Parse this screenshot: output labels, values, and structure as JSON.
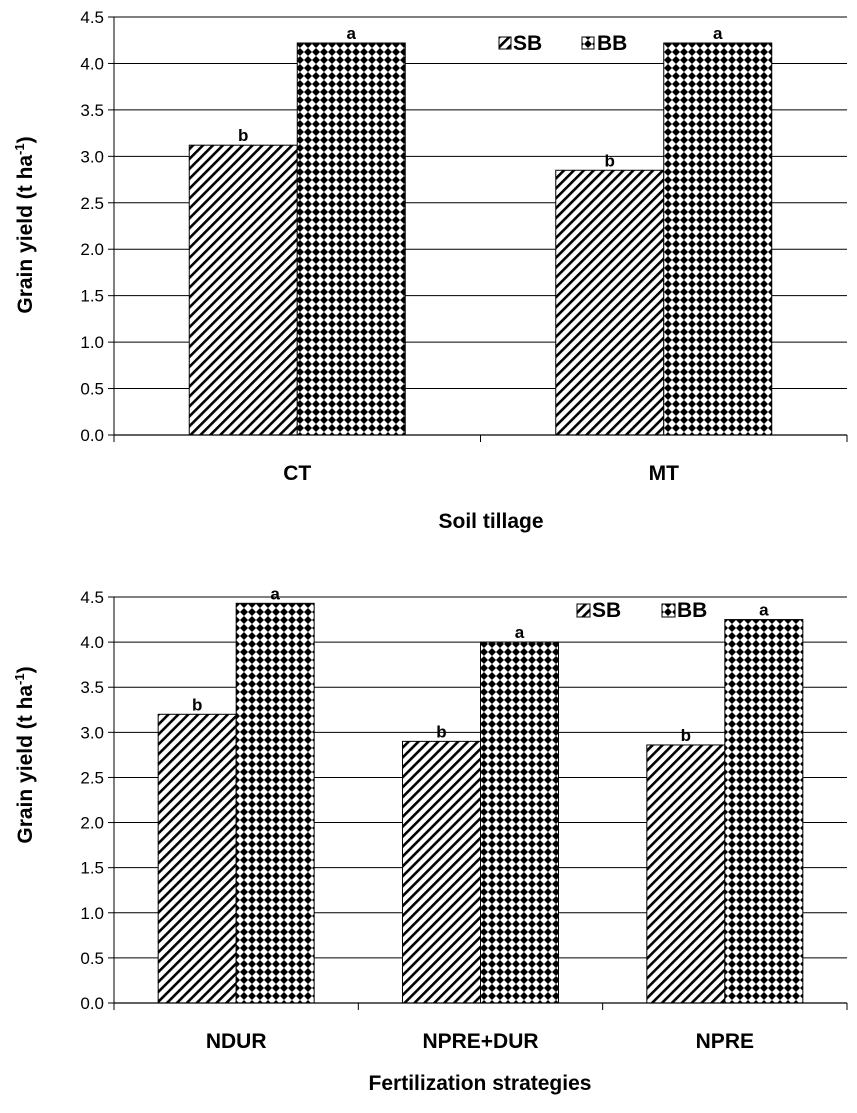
{
  "chart_data": [
    {
      "type": "bar",
      "xlabel": "Soil tillage",
      "ylabel_main": "Grain yield (t ha",
      "ylabel_sup": "-1",
      "ylabel_close": ")",
      "ylim": [
        0,
        4.5
      ],
      "yticks": [
        "0.0",
        "0.5",
        "1.0",
        "1.5",
        "2.0",
        "2.5",
        "3.0",
        "3.5",
        "4.0",
        "4.5"
      ],
      "categories": [
        "CT",
        "MT"
      ],
      "series": [
        {
          "name": "SB",
          "values": [
            3.12,
            2.85
          ],
          "letters": [
            "b",
            "b"
          ]
        },
        {
          "name": "BB",
          "values": [
            4.22,
            4.22
          ],
          "letters": [
            "a",
            "a"
          ]
        }
      ],
      "legend_position": "top-right"
    },
    {
      "type": "bar",
      "xlabel": "Fertilization strategies",
      "ylabel_main": "Grain yield (t ha",
      "ylabel_sup": "-1",
      "ylabel_close": ")",
      "ylim": [
        0,
        4.5
      ],
      "yticks": [
        "0.0",
        "0.5",
        "1.0",
        "1.5",
        "2.0",
        "2.5",
        "3.0",
        "3.5",
        "4.0",
        "4.5"
      ],
      "categories": [
        "NDUR",
        "NPRE+DUR",
        "NPRE"
      ],
      "series": [
        {
          "name": "SB",
          "values": [
            3.2,
            2.9,
            2.86
          ],
          "letters": [
            "b",
            "b",
            "b"
          ]
        },
        {
          "name": "BB",
          "values": [
            4.43,
            4.0,
            4.25
          ],
          "letters": [
            "a",
            "a",
            "a"
          ]
        }
      ],
      "legend_position": "top-right"
    }
  ]
}
